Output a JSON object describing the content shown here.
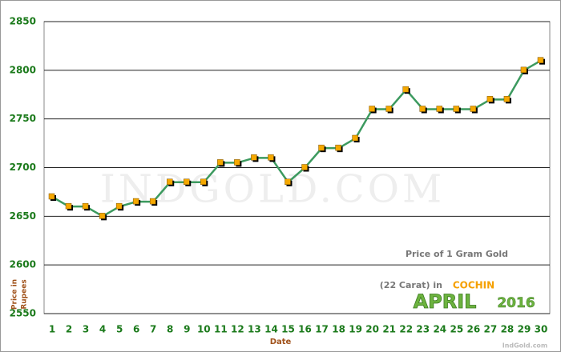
{
  "chart_data": {
    "type": "line",
    "x_label": "Date",
    "y_label": [
      "Price in",
      "Rupees"
    ],
    "watermark": "IndGold.com",
    "caption": {
      "line1": "Price of 1 Gram Gold",
      "line2": "(22 Carat) in",
      "city": "COCHIN",
      "month": "APRIL",
      "year": "2016",
      "source": "IndGold.com"
    },
    "categories": [
      "1",
      "2",
      "3",
      "4",
      "5",
      "6",
      "7",
      "8",
      "9",
      "10",
      "11",
      "12",
      "13",
      "14",
      "15",
      "16",
      "17",
      "18",
      "19",
      "20",
      "21",
      "22",
      "23",
      "24",
      "25",
      "26",
      "27",
      "28",
      "29",
      "30"
    ],
    "series": [
      {
        "color": "#3c9a5f",
        "marker_color": "#f5a800",
        "values": [
          2670,
          2660,
          2660,
          2650,
          2660,
          2665,
          2665,
          2685,
          2685,
          2685,
          2705,
          2705,
          2710,
          2710,
          2685,
          2700,
          2720,
          2720,
          2730,
          2760,
          2760,
          2780,
          2760,
          2760,
          2760,
          2760,
          2770,
          2770,
          2800,
          2810
        ]
      }
    ],
    "ylim": [
      2550,
      2850
    ],
    "yticks": [
      2550,
      2600,
      2650,
      2700,
      2750,
      2800,
      2850
    ],
    "grid": true
  }
}
